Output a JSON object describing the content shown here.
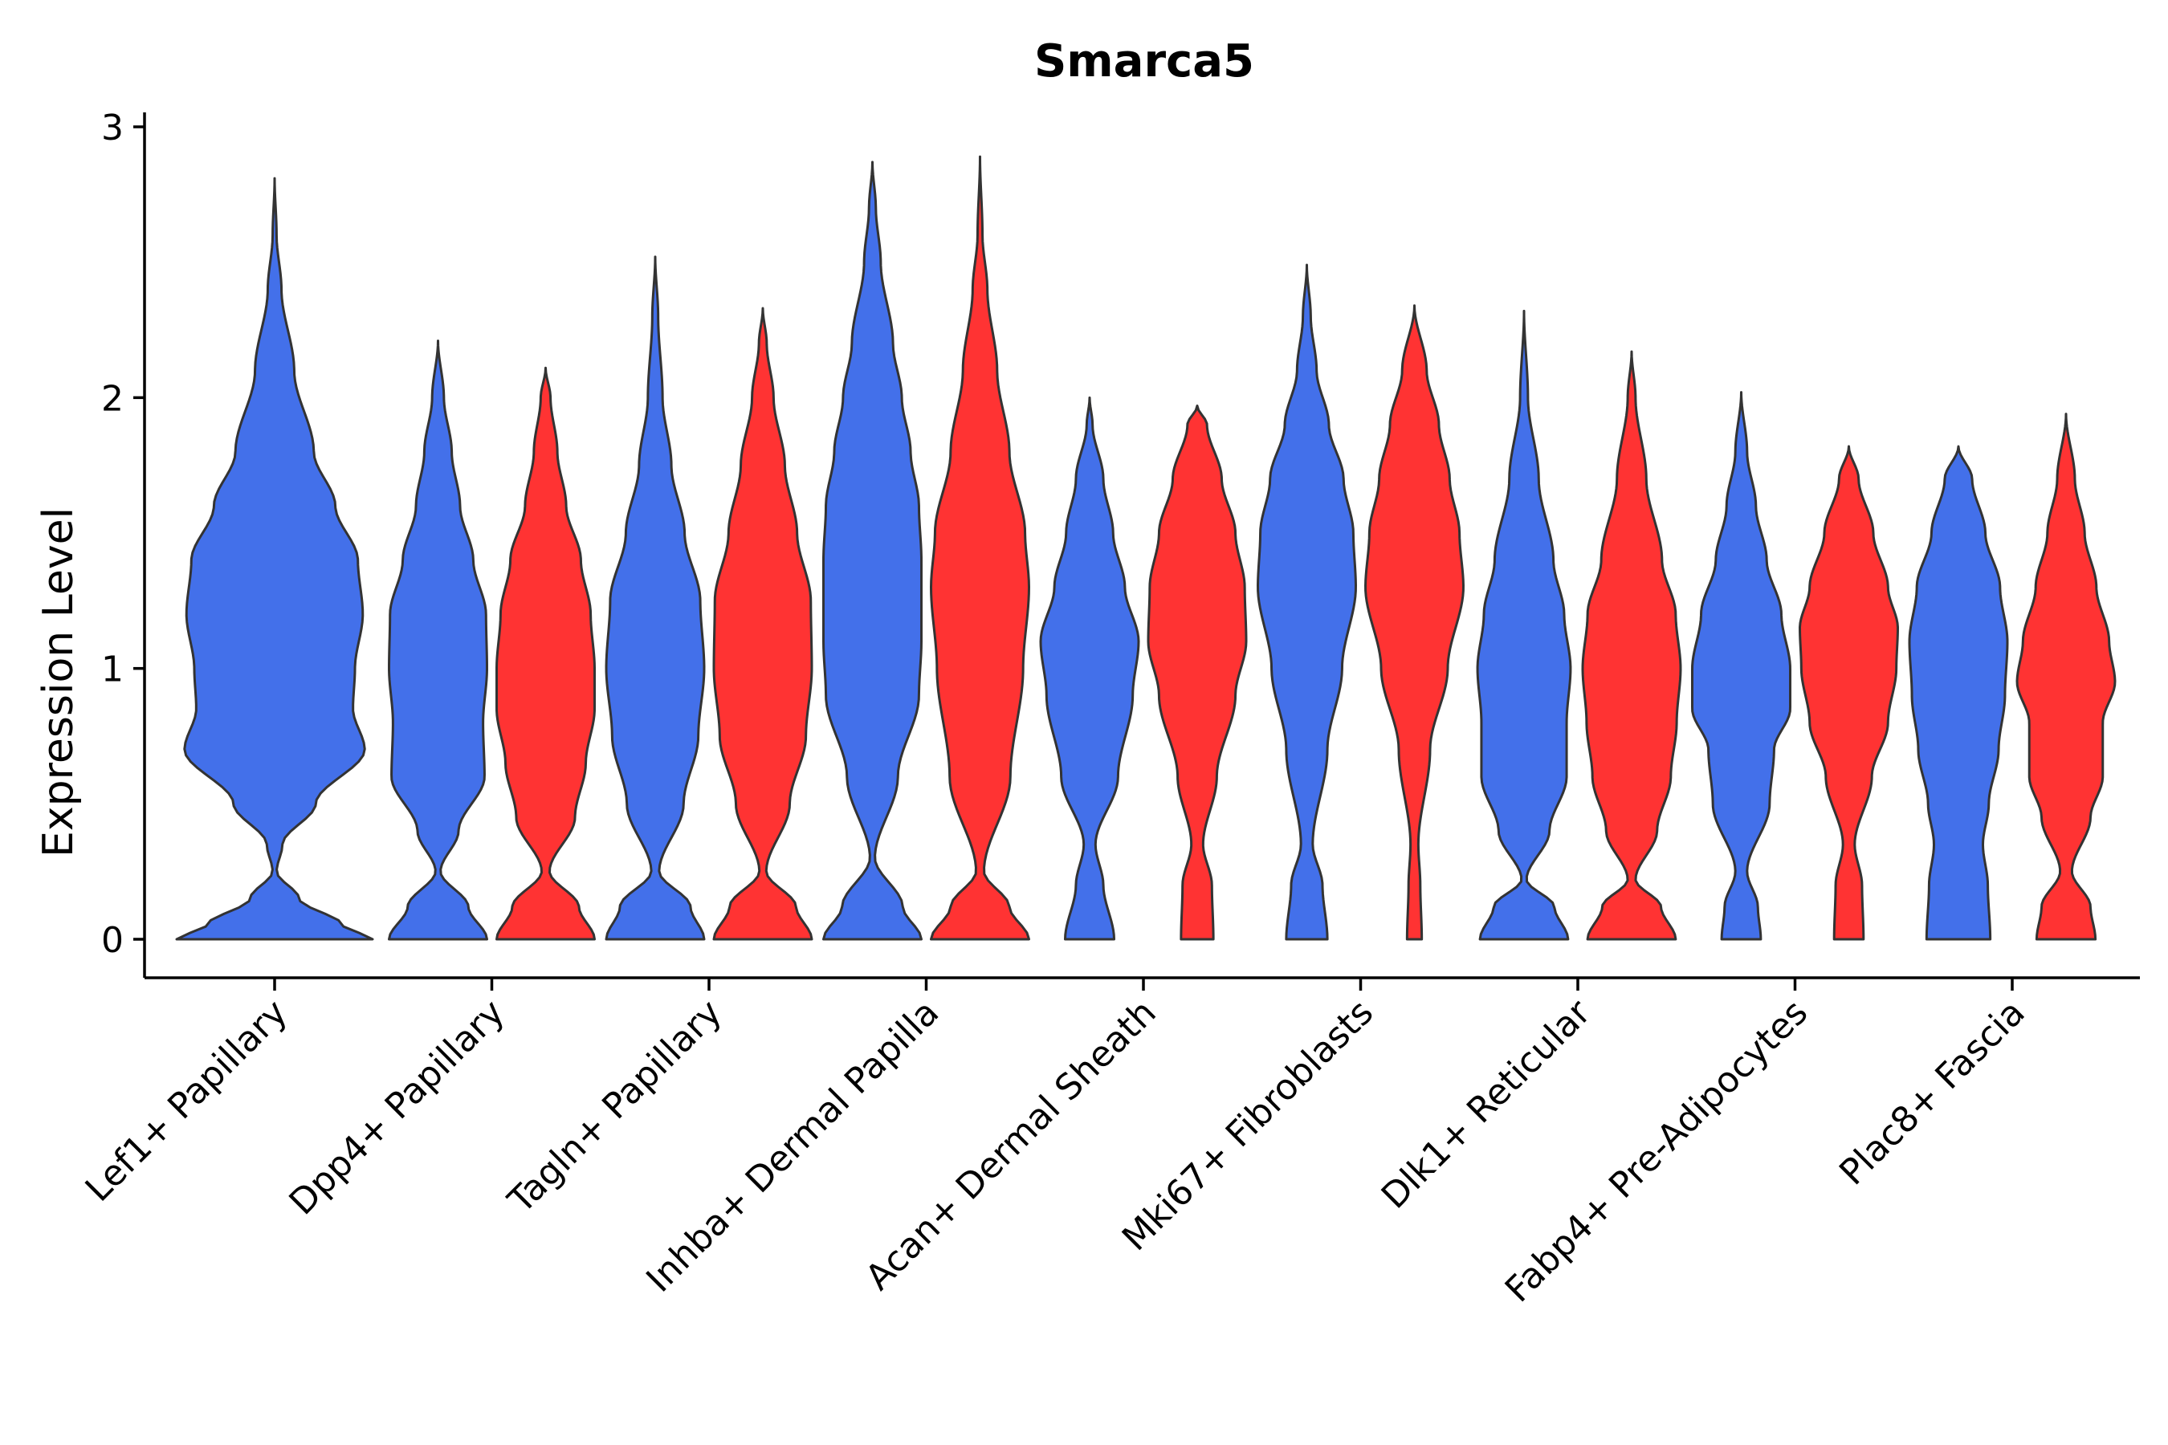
{
  "chart_data": {
    "type": "violin",
    "title": "Smarca5",
    "xlabel": "",
    "ylabel": "Expression Level",
    "ylim": [
      -0.14,
      3.05
    ],
    "yticks": [
      0,
      1,
      2,
      3
    ],
    "legend": "none",
    "grid": false,
    "colors": {
      "group_a": "#4370EA",
      "group_b": "#FF3333",
      "outline": "#333333"
    },
    "categories": [
      "Lef1+ Papillary",
      "Dpp4+ Papillary",
      "Tagln+ Papillary",
      "Inhba+ Dermal Papilla",
      "Acan+ Dermal Sheath",
      "Mki67+ Fibroblasts",
      "Dlk1+ Reticular",
      "Fabp4+ Pre-Adipocytes",
      "Plac8+ Fascia"
    ],
    "violins": [
      {
        "category": "Lef1+ Papillary",
        "group": "a",
        "max": 2.81,
        "profile": [
          [
            0,
            1.0
          ],
          [
            0.05,
            0.7
          ],
          [
            0.15,
            0.25
          ],
          [
            0.25,
            0.02
          ],
          [
            0.35,
            0.08
          ],
          [
            0.5,
            0.42
          ],
          [
            0.7,
            0.92
          ],
          [
            0.85,
            0.8
          ],
          [
            1.0,
            0.82
          ],
          [
            1.2,
            0.9
          ],
          [
            1.4,
            0.85
          ],
          [
            1.6,
            0.62
          ],
          [
            1.8,
            0.4
          ],
          [
            2.1,
            0.2
          ],
          [
            2.4,
            0.07
          ],
          [
            2.6,
            0.02
          ],
          [
            2.81,
            0.0
          ]
        ]
      },
      {
        "category": "Dpp4+ Papillary",
        "group": "a",
        "max": 2.21,
        "profile": [
          [
            0,
            1.0
          ],
          [
            0.12,
            0.62
          ],
          [
            0.25,
            0.05
          ],
          [
            0.4,
            0.42
          ],
          [
            0.6,
            0.95
          ],
          [
            0.8,
            0.92
          ],
          [
            1.0,
            1.0
          ],
          [
            1.2,
            0.98
          ],
          [
            1.4,
            0.72
          ],
          [
            1.6,
            0.45
          ],
          [
            1.8,
            0.28
          ],
          [
            2.0,
            0.12
          ],
          [
            2.21,
            0.0
          ]
        ]
      },
      {
        "category": "Dpp4+ Papillary",
        "group": "b",
        "max": 2.11,
        "profile": [
          [
            0,
            1.0
          ],
          [
            0.12,
            0.68
          ],
          [
            0.25,
            0.08
          ],
          [
            0.45,
            0.6
          ],
          [
            0.65,
            0.82
          ],
          [
            0.85,
            1.0
          ],
          [
            1.0,
            1.0
          ],
          [
            1.2,
            0.92
          ],
          [
            1.4,
            0.72
          ],
          [
            1.6,
            0.42
          ],
          [
            1.8,
            0.24
          ],
          [
            2.0,
            0.1
          ],
          [
            2.11,
            0.0
          ]
        ]
      },
      {
        "category": "Tagln+ Papillary",
        "group": "a",
        "max": 2.52,
        "profile": [
          [
            0,
            1.0
          ],
          [
            0.12,
            0.72
          ],
          [
            0.25,
            0.08
          ],
          [
            0.5,
            0.58
          ],
          [
            0.75,
            0.88
          ],
          [
            1.0,
            1.0
          ],
          [
            1.25,
            0.92
          ],
          [
            1.5,
            0.6
          ],
          [
            1.75,
            0.33
          ],
          [
            2.0,
            0.15
          ],
          [
            2.3,
            0.06
          ],
          [
            2.52,
            0.0
          ]
        ]
      },
      {
        "category": "Tagln+ Papillary",
        "group": "b",
        "max": 2.33,
        "profile": [
          [
            0,
            1.0
          ],
          [
            0.12,
            0.68
          ],
          [
            0.25,
            0.07
          ],
          [
            0.5,
            0.55
          ],
          [
            0.75,
            0.88
          ],
          [
            1.0,
            1.0
          ],
          [
            1.25,
            0.98
          ],
          [
            1.5,
            0.7
          ],
          [
            1.75,
            0.45
          ],
          [
            2.0,
            0.22
          ],
          [
            2.2,
            0.08
          ],
          [
            2.33,
            0.0
          ]
        ]
      },
      {
        "category": "Inhba+ Dermal Papilla",
        "group": "a",
        "max": 2.87,
        "profile": [
          [
            0,
            1.0
          ],
          [
            0.12,
            0.62
          ],
          [
            0.3,
            0.05
          ],
          [
            0.6,
            0.52
          ],
          [
            0.9,
            0.95
          ],
          [
            1.1,
            1.0
          ],
          [
            1.4,
            1.0
          ],
          [
            1.6,
            0.95
          ],
          [
            1.8,
            0.78
          ],
          [
            2.0,
            0.6
          ],
          [
            2.2,
            0.42
          ],
          [
            2.5,
            0.17
          ],
          [
            2.7,
            0.07
          ],
          [
            2.87,
            0.0
          ]
        ]
      },
      {
        "category": "Inhba+ Dermal Papilla",
        "group": "b",
        "max": 2.89,
        "profile": [
          [
            0,
            1.0
          ],
          [
            0.12,
            0.6
          ],
          [
            0.25,
            0.08
          ],
          [
            0.6,
            0.62
          ],
          [
            1.0,
            0.88
          ],
          [
            1.3,
            1.0
          ],
          [
            1.5,
            0.92
          ],
          [
            1.8,
            0.6
          ],
          [
            2.1,
            0.35
          ],
          [
            2.4,
            0.15
          ],
          [
            2.6,
            0.05
          ],
          [
            2.89,
            0.0
          ]
        ]
      },
      {
        "category": "Acan+ Dermal Sheath",
        "group": "a",
        "max": 2.0,
        "profile": [
          [
            0,
            0.5
          ],
          [
            0.2,
            0.28
          ],
          [
            0.35,
            0.12
          ],
          [
            0.6,
            0.58
          ],
          [
            0.9,
            0.88
          ],
          [
            1.1,
            1.0
          ],
          [
            1.3,
            0.72
          ],
          [
            1.5,
            0.48
          ],
          [
            1.7,
            0.28
          ],
          [
            1.9,
            0.06
          ],
          [
            2.0,
            0.0
          ]
        ]
      },
      {
        "category": "Acan+ Dermal Sheath",
        "group": "b",
        "max": 1.97,
        "profile": [
          [
            0,
            0.33
          ],
          [
            0.2,
            0.3
          ],
          [
            0.35,
            0.12
          ],
          [
            0.6,
            0.4
          ],
          [
            0.9,
            0.78
          ],
          [
            1.1,
            1.0
          ],
          [
            1.3,
            0.97
          ],
          [
            1.5,
            0.78
          ],
          [
            1.7,
            0.5
          ],
          [
            1.9,
            0.2
          ],
          [
            1.97,
            0.0
          ]
        ]
      },
      {
        "category": "Mki67+ Fibroblasts",
        "group": "a",
        "max": 2.49,
        "profile": [
          [
            0,
            0.42
          ],
          [
            0.2,
            0.32
          ],
          [
            0.35,
            0.12
          ],
          [
            0.7,
            0.42
          ],
          [
            1.0,
            0.72
          ],
          [
            1.3,
            1.0
          ],
          [
            1.5,
            0.95
          ],
          [
            1.7,
            0.75
          ],
          [
            1.9,
            0.45
          ],
          [
            2.1,
            0.2
          ],
          [
            2.3,
            0.08
          ],
          [
            2.49,
            0.0
          ]
        ]
      },
      {
        "category": "Mki67+ Fibroblasts",
        "group": "b",
        "max": 2.34,
        "profile": [
          [
            0,
            0.15
          ],
          [
            0.2,
            0.12
          ],
          [
            0.35,
            0.08
          ],
          [
            0.7,
            0.32
          ],
          [
            1.0,
            0.68
          ],
          [
            1.3,
            1.0
          ],
          [
            1.5,
            0.92
          ],
          [
            1.7,
            0.72
          ],
          [
            1.9,
            0.5
          ],
          [
            2.1,
            0.25
          ],
          [
            2.34,
            0.0
          ]
        ]
      },
      {
        "category": "Dlk1+ Reticular",
        "group": "a",
        "max": 2.32,
        "profile": [
          [
            0,
            0.9
          ],
          [
            0.12,
            0.62
          ],
          [
            0.22,
            0.05
          ],
          [
            0.4,
            0.52
          ],
          [
            0.6,
            0.87
          ],
          [
            0.8,
            0.87
          ],
          [
            1.0,
            0.95
          ],
          [
            1.2,
            0.82
          ],
          [
            1.4,
            0.6
          ],
          [
            1.7,
            0.3
          ],
          [
            2.0,
            0.08
          ],
          [
            2.32,
            0.0
          ]
        ]
      },
      {
        "category": "Dlk1+ Reticular",
        "group": "b",
        "max": 2.17,
        "profile": [
          [
            0,
            0.9
          ],
          [
            0.12,
            0.6
          ],
          [
            0.22,
            0.08
          ],
          [
            0.4,
            0.52
          ],
          [
            0.6,
            0.8
          ],
          [
            0.8,
            0.92
          ],
          [
            1.0,
            1.0
          ],
          [
            1.2,
            0.9
          ],
          [
            1.4,
            0.62
          ],
          [
            1.7,
            0.3
          ],
          [
            2.0,
            0.08
          ],
          [
            2.17,
            0.0
          ]
        ]
      },
      {
        "category": "Fabp4+ Pre-Adipocytes",
        "group": "a",
        "max": 2.02,
        "profile": [
          [
            0,
            0.4
          ],
          [
            0.12,
            0.34
          ],
          [
            0.25,
            0.12
          ],
          [
            0.5,
            0.58
          ],
          [
            0.7,
            0.67
          ],
          [
            0.85,
            1.0
          ],
          [
            1.0,
            1.0
          ],
          [
            1.2,
            0.82
          ],
          [
            1.4,
            0.52
          ],
          [
            1.6,
            0.3
          ],
          [
            1.8,
            0.12
          ],
          [
            2.02,
            0.0
          ]
        ]
      },
      {
        "category": "Fabp4+ Pre-Adipocytes",
        "group": "b",
        "max": 1.82,
        "profile": [
          [
            0,
            0.3
          ],
          [
            0.2,
            0.27
          ],
          [
            0.35,
            0.12
          ],
          [
            0.6,
            0.47
          ],
          [
            0.8,
            0.8
          ],
          [
            1.0,
            0.97
          ],
          [
            1.15,
            1.0
          ],
          [
            1.3,
            0.8
          ],
          [
            1.5,
            0.5
          ],
          [
            1.7,
            0.2
          ],
          [
            1.82,
            0.0
          ]
        ]
      },
      {
        "category": "Plac8+ Fascia",
        "group": "a",
        "max": 1.82,
        "profile": [
          [
            0,
            0.65
          ],
          [
            0.2,
            0.6
          ],
          [
            0.35,
            0.5
          ],
          [
            0.5,
            0.62
          ],
          [
            0.7,
            0.82
          ],
          [
            0.9,
            0.95
          ],
          [
            1.1,
            1.0
          ],
          [
            1.3,
            0.85
          ],
          [
            1.5,
            0.55
          ],
          [
            1.7,
            0.28
          ],
          [
            1.82,
            0.0
          ]
        ]
      },
      {
        "category": "Plac8+ Fascia",
        "group": "b",
        "max": 1.94,
        "profile": [
          [
            0,
            0.6
          ],
          [
            0.12,
            0.5
          ],
          [
            0.25,
            0.12
          ],
          [
            0.45,
            0.5
          ],
          [
            0.6,
            0.75
          ],
          [
            0.8,
            0.75
          ],
          [
            0.95,
            1.0
          ],
          [
            1.1,
            0.88
          ],
          [
            1.3,
            0.62
          ],
          [
            1.5,
            0.38
          ],
          [
            1.7,
            0.18
          ],
          [
            1.94,
            0.0
          ]
        ]
      }
    ]
  }
}
